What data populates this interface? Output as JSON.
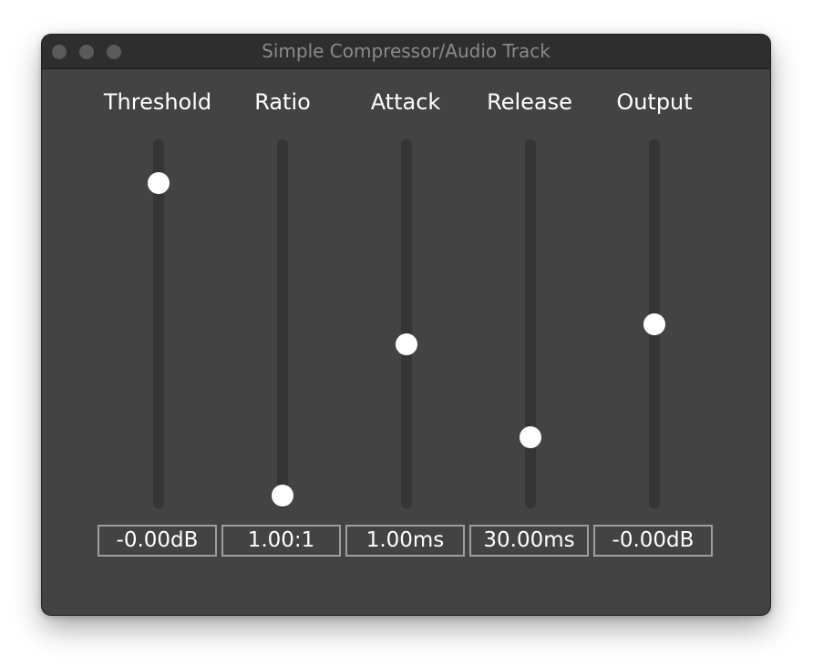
{
  "window": {
    "title": "Simple Compressor/Audio Track"
  },
  "controls": [
    {
      "name": "threshold",
      "label": "Threshold",
      "value": "-0.00dB",
      "level": 0.91
    },
    {
      "name": "ratio",
      "label": "Ratio",
      "value": "1.00:1",
      "level": 0.0
    },
    {
      "name": "attack",
      "label": "Attack",
      "value": "1.00ms",
      "level": 0.44
    },
    {
      "name": "release",
      "label": "Release",
      "value": "30.00ms",
      "level": 0.17
    },
    {
      "name": "output",
      "label": "Output",
      "value": "-0.00dB",
      "level": 0.5
    }
  ],
  "colors": {
    "window_bg": "#434343",
    "titlebar_bg": "#2e2e2f",
    "track": "#353535",
    "thumb": "#ffffff",
    "value_border": "#9aa0a3",
    "text": "#ffffff"
  }
}
